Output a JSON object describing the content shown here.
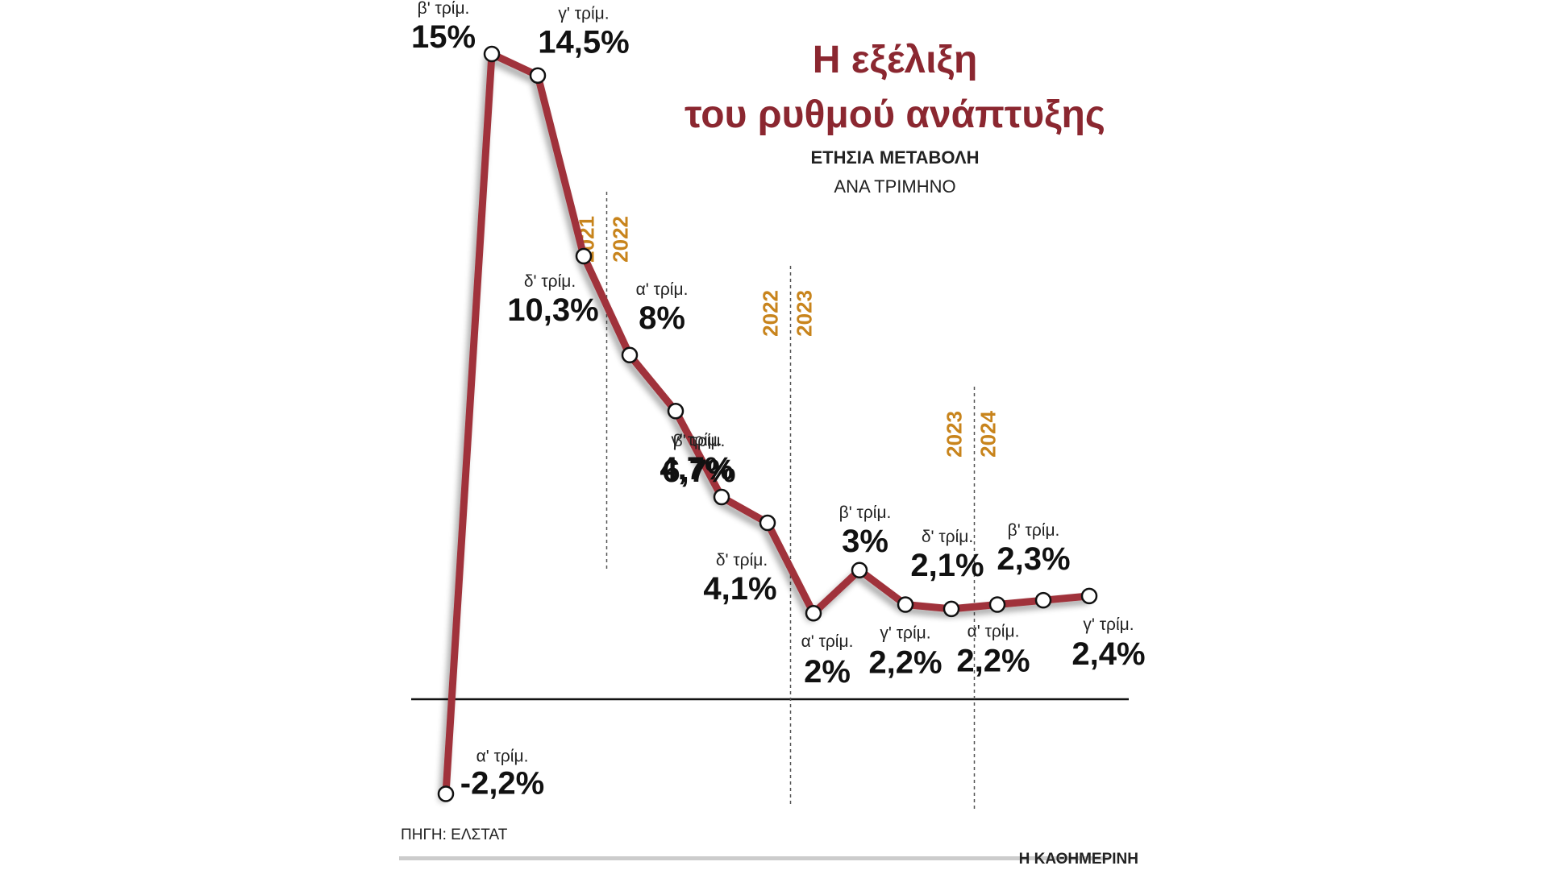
{
  "title_line1": "Η εξέλιξη",
  "title_line2": "του ρυθμού ανάπτυξης",
  "subtitle_line1": "ΕΤΗΣΙΑ ΜΕΤΑΒΟΛΗ",
  "subtitle_line2": "ΑΝΑ ΤΡΙΜΗΝΟ",
  "source": "ΠΗΓΗ: ΕΛΣΤΑΤ",
  "brand": "Η ΚΑΘΗΜΕΡΙΝΗ",
  "colors": {
    "line": "#a0333a",
    "title": "#8b2730",
    "year": "#c8841c",
    "axis": "#111111"
  },
  "chart_data": {
    "type": "line",
    "title": "Η εξέλιξη του ρυθμού ανάπτυξης",
    "subtitle": "ΕΤΗΣΙΑ ΜΕΤΑΒΟΛΗ ΑΝΑ ΤΡΙΜΗΝΟ",
    "ylim": [
      -2.2,
      15
    ],
    "grid": false,
    "points": [
      {
        "quarter": "α' τρίμ.",
        "value": -2.2,
        "label": "-2,2%"
      },
      {
        "quarter": "β' τρίμ.",
        "value": 15,
        "label": "15%"
      },
      {
        "quarter": "γ' τρίμ.",
        "value": 14.5,
        "label": "14,5%"
      },
      {
        "quarter": "δ' τρίμ.",
        "value": 10.3,
        "label": "10,3%"
      },
      {
        "quarter": "α' τρίμ.",
        "value": 8,
        "label": "8%"
      },
      {
        "quarter": "β' τρίμ.",
        "value": 6.7,
        "label": "6,7%"
      },
      {
        "quarter": "γ' τρίμ.",
        "value": 4.7,
        "label": "4,7%"
      },
      {
        "quarter": "δ' τρίμ.",
        "value": 4.1,
        "label": "4,1%"
      },
      {
        "quarter": "α' τρίμ.",
        "value": 2,
        "label": "2%"
      },
      {
        "quarter": "β' τρίμ.",
        "value": 3,
        "label": "3%"
      },
      {
        "quarter": "γ' τρίμ.",
        "value": 2.2,
        "label": "2,2%"
      },
      {
        "quarter": "δ' τρίμ.",
        "value": 2.1,
        "label": "2,1%"
      },
      {
        "quarter": "α' τρίμ.",
        "value": 2.2,
        "label": "2,2%"
      },
      {
        "quarter": "β' τρίμ.",
        "value": 2.3,
        "label": "2,3%"
      },
      {
        "quarter": "γ' τρίμ.",
        "value": 2.4,
        "label": "2,4%"
      }
    ],
    "year_dividers": [
      {
        "after_index": 3,
        "year_before": "2021",
        "year_after": "2022"
      },
      {
        "after_index": 7,
        "year_before": "2022",
        "year_after": "2023"
      },
      {
        "after_index": 11,
        "year_before": "2023",
        "year_after": "2024"
      }
    ]
  }
}
